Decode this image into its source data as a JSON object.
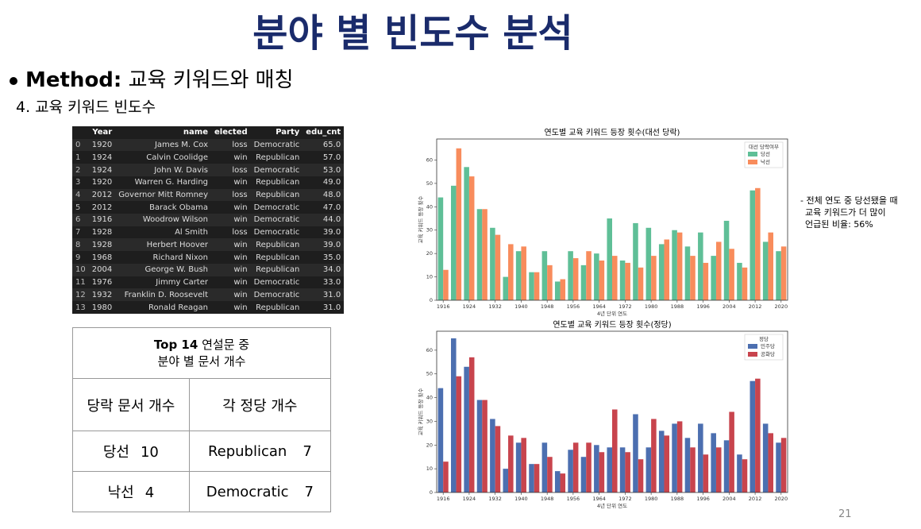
{
  "title": "분야 별 빈도수 분석",
  "method": {
    "label": "Method:",
    "text": "교육 키워드와 매칭"
  },
  "subheading": "4. 교육 키워드 빈도수",
  "data_table": {
    "columns": [
      "Year",
      "name",
      "elected",
      "Party",
      "edu_cnt"
    ],
    "rows": [
      [
        "0",
        "1920",
        "James M. Cox",
        "loss",
        "Democratic",
        "65.0"
      ],
      [
        "1",
        "1924",
        "Calvin Coolidge",
        "win",
        "Republican",
        "57.0"
      ],
      [
        "2",
        "1924",
        "John W. Davis",
        "loss",
        "Democratic",
        "53.0"
      ],
      [
        "3",
        "1920",
        "Warren G. Harding",
        "win",
        "Republican",
        "49.0"
      ],
      [
        "4",
        "2012",
        "Governor Mitt Romney",
        "loss",
        "Republican",
        "48.0"
      ],
      [
        "5",
        "2012",
        "Barack Obama",
        "win",
        "Democratic",
        "47.0"
      ],
      [
        "6",
        "1916",
        "Woodrow Wilson",
        "win",
        "Democratic",
        "44.0"
      ],
      [
        "7",
        "1928",
        "Al Smith",
        "loss",
        "Democratic",
        "39.0"
      ],
      [
        "8",
        "1928",
        "Herbert Hoover",
        "win",
        "Republican",
        "39.0"
      ],
      [
        "9",
        "1968",
        "Richard Nixon",
        "win",
        "Republican",
        "35.0"
      ],
      [
        "10",
        "2004",
        "George W. Bush",
        "win",
        "Republican",
        "34.0"
      ],
      [
        "11",
        "1976",
        "Jimmy Carter",
        "win",
        "Democratic",
        "33.0"
      ],
      [
        "12",
        "1932",
        "Franklin D. Roosevelt",
        "win",
        "Democratic",
        "31.0"
      ],
      [
        "13",
        "1980",
        "Ronald Reagan",
        "win",
        "Republican",
        "31.0"
      ]
    ]
  },
  "summary_table": {
    "header_bold": "Top 14",
    "header_rest": "연설문 중",
    "header_line2": "분야 별 문서 개수",
    "col1": "당락 문서 개수",
    "col2": "각 정당 개수",
    "rows": [
      [
        "당선",
        10,
        "Republican",
        7
      ],
      [
        "낙선",
        4,
        "Democratic",
        7
      ]
    ]
  },
  "note": [
    "- 전체 연도 중 당선됐을 때",
    "교육 키워드가 더 많이",
    "언급된 비율: 56%"
  ],
  "page_number": "21",
  "chart_data": [
    {
      "type": "bar",
      "title": "연도별 교육 키워드 등장 횟수(대선 당락)",
      "x_label": "4년 단위 연도",
      "y_label": "교육 키워드 등장 횟수",
      "legend_title": "대선 당락여부",
      "legend": "upper right",
      "x": [
        1916,
        1920,
        1924,
        1928,
        1932,
        1936,
        1940,
        1944,
        1948,
        1952,
        1956,
        1960,
        1964,
        1968,
        1972,
        1976,
        1980,
        1984,
        1988,
        1992,
        1996,
        2000,
        2004,
        2008,
        2012,
        2016,
        2020
      ],
      "xlim": [
        1914,
        2022
      ],
      "xticks": [
        1916,
        1924,
        1932,
        1940,
        1948,
        1956,
        1964,
        1972,
        1980,
        1988,
        1996,
        2004,
        2012,
        2020
      ],
      "ylim": [
        0,
        69
      ],
      "yticks": [
        0,
        10,
        20,
        30,
        40,
        50,
        60
      ],
      "series": [
        {
          "name": "당선",
          "color": "#5fbf97",
          "values": [
            44,
            49,
            57,
            39,
            31,
            10,
            21,
            12,
            21,
            8,
            21,
            15,
            20,
            35,
            17,
            33,
            31,
            24,
            30,
            23,
            29,
            19,
            34,
            16,
            47,
            25,
            21
          ]
        },
        {
          "name": "낙선",
          "color": "#f88c5c",
          "values": [
            13,
            65,
            53,
            39,
            28,
            24,
            23,
            12,
            15,
            9,
            18,
            21,
            17,
            19,
            16,
            14,
            19,
            26,
            29,
            19,
            16,
            25,
            22,
            14,
            48,
            29,
            23
          ]
        }
      ]
    },
    {
      "type": "bar",
      "title": "연도별 교육 키워드 등장 횟수(정당)",
      "x_label": "4년 단위 연도",
      "y_label": "교육 키워드 등장 횟수",
      "legend_title": "정당",
      "legend": "upper right",
      "x": [
        1916,
        1920,
        1924,
        1928,
        1932,
        1936,
        1940,
        1944,
        1948,
        1952,
        1956,
        1960,
        1964,
        1968,
        1972,
        1976,
        1980,
        1984,
        1988,
        1992,
        1996,
        2000,
        2004,
        2008,
        2012,
        2016,
        2020
      ],
      "xlim": [
        1914,
        2022
      ],
      "xticks": [
        1916,
        1924,
        1932,
        1940,
        1948,
        1956,
        1964,
        1972,
        1980,
        1988,
        1996,
        2004,
        2012,
        2020
      ],
      "ylim": [
        0,
        68
      ],
      "yticks": [
        0,
        10,
        20,
        30,
        40,
        50,
        60
      ],
      "series": [
        {
          "name": "민주당",
          "color": "#4c6fb0",
          "values": [
            44,
            65,
            53,
            39,
            31,
            10,
            21,
            12,
            21,
            9,
            18,
            15,
            20,
            19,
            19,
            33,
            19,
            26,
            29,
            23,
            29,
            25,
            22,
            16,
            47,
            29,
            21
          ]
        },
        {
          "name": "공화당",
          "color": "#c8444d",
          "values": [
            13,
            49,
            57,
            39,
            28,
            24,
            23,
            12,
            15,
            8,
            21,
            21,
            17,
            35,
            17,
            14,
            31,
            24,
            30,
            19,
            16,
            19,
            34,
            14,
            48,
            25,
            23
          ]
        }
      ]
    }
  ]
}
